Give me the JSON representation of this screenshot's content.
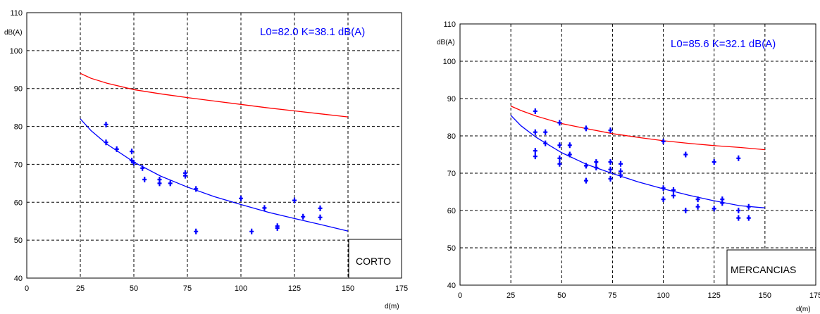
{
  "chart_data": [
    {
      "type": "scatter",
      "ylabel": "dB(A)",
      "xlabel": "d(m)",
      "xlim": [
        0,
        175
      ],
      "ylim": [
        40,
        110
      ],
      "xticks": [
        0,
        25,
        50,
        75,
        100,
        125,
        150,
        175
      ],
      "yticks": [
        40,
        50,
        60,
        70,
        80,
        90,
        100,
        110
      ],
      "grid": true,
      "annotation": "L0=82.0  K=38.1  dB(A)",
      "box_label": "CORTO",
      "colors": {
        "upper_curve": "#ff0000",
        "fit_curve": "#0000ff",
        "points": "#0000ff",
        "annotation": "#0000ff"
      },
      "upper_curve": {
        "x": [
          25,
          30,
          37.5,
          50,
          62.5,
          75,
          87.5,
          100,
          112.5,
          125,
          137.5,
          150
        ],
        "y": [
          94.0,
          92.7,
          91.4,
          89.7,
          88.6,
          87.6,
          86.7,
          85.8,
          84.9,
          84.1,
          83.3,
          82.5
        ]
      },
      "fit_curve": {
        "x": [
          25,
          30,
          37.5,
          50,
          62.5,
          75,
          87.5,
          100,
          112.5,
          125,
          137.5,
          150
        ],
        "y": [
          82.0,
          78.9,
          75.3,
          70.6,
          66.9,
          64.0,
          61.5,
          59.4,
          57.4,
          55.7,
          54.1,
          52.4
        ]
      },
      "points": {
        "x": [
          37,
          37,
          42,
          49,
          49,
          50,
          54,
          55,
          62,
          62,
          67,
          74,
          74,
          79,
          79,
          100,
          105,
          111,
          117,
          117,
          125,
          129,
          137,
          137
        ],
        "y": [
          80.5,
          75.8,
          74.0,
          73.4,
          71.0,
          70.4,
          69.0,
          66.0,
          66.0,
          65.0,
          65.0,
          67.7,
          67.0,
          63.5,
          52.3,
          61.0,
          52.3,
          58.5,
          53.7,
          53.2,
          60.5,
          56.2,
          58.4,
          56.0
        ]
      }
    },
    {
      "type": "scatter",
      "ylabel": "dB(A)",
      "xlabel": "d(m)",
      "xlim": [
        0,
        175
      ],
      "ylim": [
        40,
        110
      ],
      "xticks": [
        0,
        25,
        50,
        75,
        100,
        125,
        150,
        175
      ],
      "yticks": [
        40,
        50,
        60,
        70,
        80,
        90,
        100,
        110
      ],
      "grid": true,
      "annotation": "L0=85.6  K=32.1  dB(A)",
      "box_label": "MERCANCIAS",
      "colors": {
        "upper_curve": "#ff0000",
        "fit_curve": "#0000ff",
        "points": "#0000ff",
        "annotation": "#0000ff"
      },
      "upper_curve": {
        "x": [
          25,
          30,
          37.5,
          50,
          62.5,
          75,
          87.5,
          100,
          112.5,
          125,
          137.5,
          150
        ],
        "y": [
          88.0,
          86.8,
          85.3,
          83.3,
          81.9,
          80.6,
          79.6,
          78.7,
          78.0,
          77.4,
          76.9,
          76.3
        ]
      },
      "fit_curve": {
        "x": [
          25,
          30,
          37.5,
          50,
          62.5,
          75,
          87.5,
          100,
          112.5,
          125,
          137.5,
          150
        ],
        "y": [
          85.5,
          82.7,
          79.6,
          75.5,
          72.3,
          69.9,
          67.7,
          65.8,
          64.1,
          62.6,
          61.3,
          60.7
        ]
      },
      "points": {
        "x": [
          37,
          37,
          37,
          37,
          42,
          42,
          49,
          49,
          49,
          49,
          54,
          54,
          62,
          62,
          62,
          67,
          67,
          74,
          74,
          74,
          74,
          79,
          79,
          79,
          100,
          100,
          100,
          105,
          105,
          111,
          111,
          117,
          117,
          125,
          125,
          129,
          129,
          137,
          137,
          137,
          142,
          142
        ],
        "y": [
          86.6,
          81.0,
          76.0,
          74.5,
          81.0,
          78.0,
          83.5,
          77.5,
          74.0,
          72.5,
          77.5,
          75.0,
          82.0,
          72.0,
          68.0,
          73.0,
          71.5,
          81.5,
          73.0,
          71.0,
          68.5,
          72.5,
          70.5,
          69.5,
          78.5,
          66.0,
          63.0,
          65.5,
          64.0,
          75.0,
          60.0,
          63.0,
          61.0,
          73.0,
          60.5,
          63.0,
          62.0,
          74.0,
          60.0,
          58.0,
          61.0,
          58.0
        ]
      }
    }
  ]
}
